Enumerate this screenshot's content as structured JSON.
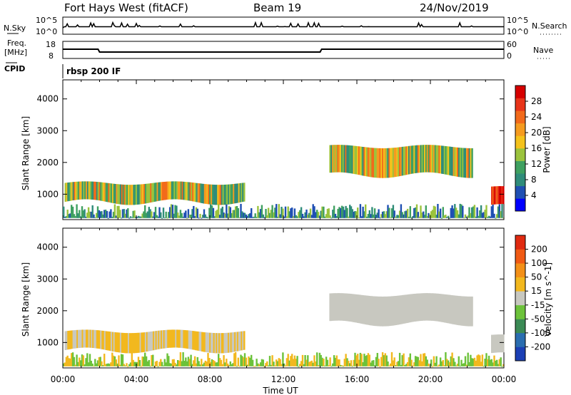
{
  "header": {
    "site": "Fort Hays West (fitACF)",
    "beam": "Beam 19",
    "date": "24/Nov/2019"
  },
  "strips": {
    "nsky_label": "N.Sky",
    "nsky_ticks": [
      "10^5",
      "10^0"
    ],
    "nsearch_label": "N.Search",
    "nsearch_ticks": [
      "10^5",
      "10^0"
    ],
    "freq_label_1": "Freq.",
    "freq_label_2": "[MHz]",
    "freq_ticks": [
      "18",
      "8"
    ],
    "nave_label": "Nave",
    "nave_ticks": [
      "60",
      "0"
    ],
    "cpid_label": "CPID",
    "cpid_value": "rbsp 200 IF"
  },
  "chart_data": [
    {
      "type": "heatmap",
      "panel": "power",
      "ylabel": "Slant Range [km]",
      "yticks": [
        1000,
        2000,
        3000,
        4000
      ],
      "ylim": [
        200,
        4600
      ],
      "xlim_hours": [
        0,
        24
      ],
      "colorbar_label": "Power [dB]",
      "colorbar_ticks": [
        "28",
        "24",
        "20",
        "16",
        "12",
        "8",
        "4"
      ],
      "colorbar_colors": [
        "#0000ff",
        "#1f4fb3",
        "#2f8c7a",
        "#3fa060",
        "#9bc33d",
        "#f4c21c",
        "#f59b20",
        "#f26a1b",
        "#e83419",
        "#d60000"
      ],
      "echo_regions": [
        {
          "t_start": 0.1,
          "t_end": 9.9,
          "range_min": 750,
          "range_max": 1350,
          "description_level": "moderate"
        },
        {
          "t_start": 14.5,
          "t_end": 22.3,
          "range_min": 1600,
          "range_max": 2500,
          "description_level": "moderate"
        },
        {
          "t_start": 23.3,
          "t_end": 24.0,
          "range_min": 600,
          "range_max": 1200,
          "description_level": "strong"
        },
        {
          "t_start": 0.0,
          "t_end": 24.0,
          "range_min": 250,
          "range_max": 700,
          "description_level": "sparse ground scatter"
        }
      ]
    },
    {
      "type": "heatmap",
      "panel": "velocity",
      "ylabel": "Slant Range [km]",
      "yticks": [
        1000,
        2000,
        3000,
        4000
      ],
      "ylim": [
        200,
        4600
      ],
      "xlim_hours": [
        0,
        24
      ],
      "xticks": [
        "00:00",
        "04:00",
        "08:00",
        "12:00",
        "16:00",
        "20:00",
        "00:00"
      ],
      "xlabel": "Time UT",
      "colorbar_label": "Velocity [m s^-1]",
      "colorbar_ticks": [
        "200",
        "100",
        "50",
        "15",
        "-15",
        "-50",
        "-100",
        "-200"
      ],
      "colorbar_colors": [
        "#1b3fb5",
        "#2a6db0",
        "#3b8a55",
        "#6cc23a",
        "#c8c8c0",
        "#f2b81e",
        "#f39018",
        "#f05a14",
        "#e02a10"
      ]
    }
  ]
}
